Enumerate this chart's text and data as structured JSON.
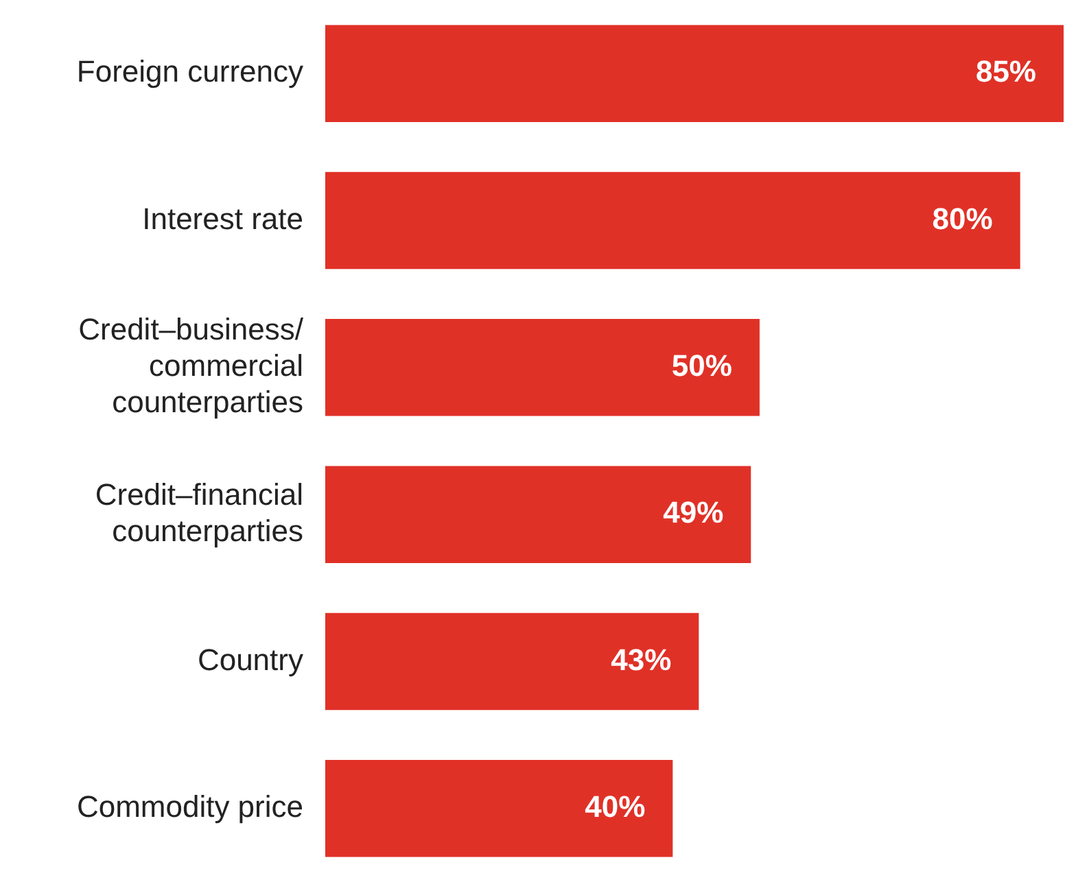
{
  "chart_data": {
    "type": "bar",
    "orientation": "horizontal",
    "categories": [
      "Foreign currency",
      "Interest rate",
      "Credit–business/ commercial counterparties",
      "Credit–financial counterparties",
      "Country",
      "Commodity price"
    ],
    "values": [
      85,
      80,
      50,
      49,
      43,
      40
    ],
    "value_labels": [
      "85%",
      "80%",
      "50%",
      "49%",
      "43%",
      "40%"
    ],
    "color": "#e03127"
  }
}
